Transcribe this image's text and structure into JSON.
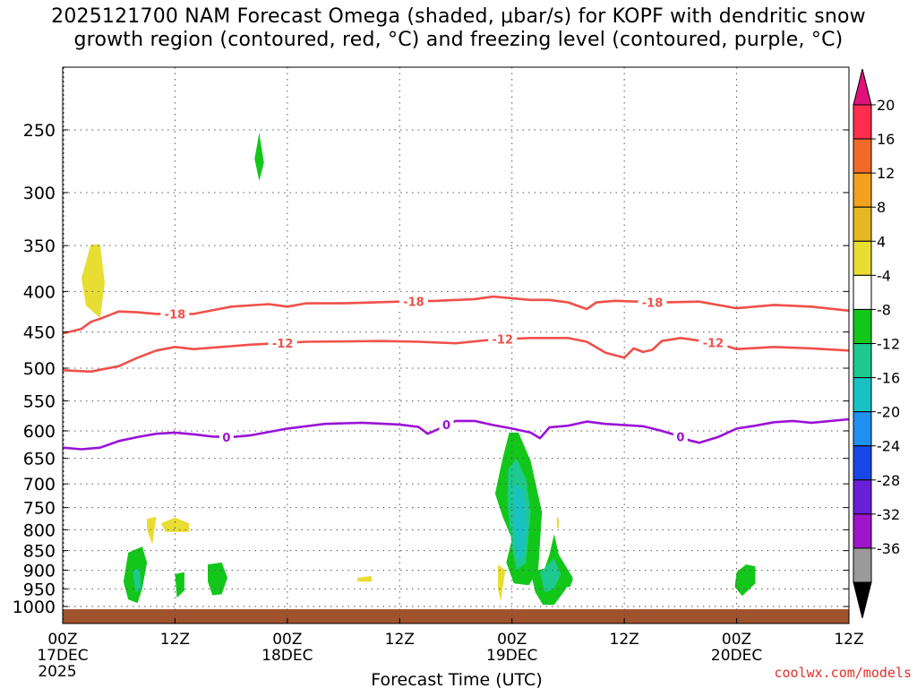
{
  "chart_data": {
    "type": "heatmap",
    "title_line1": "2025121700 NAM Forecast Omega (shaded, μbar/s) for KOPF with dendritic snow",
    "title_line2": "growth region (contoured, red, °C) and freezing level (contoured, purple, °C)",
    "xlabel": "Forecast Time (UTC)",
    "xlim_hours": [
      0,
      84
    ],
    "x_ticks": [
      {
        "hour": 0,
        "label": "00Z",
        "sub": "17DEC",
        "sub2": "2025"
      },
      {
        "hour": 12,
        "label": "12Z"
      },
      {
        "hour": 24,
        "label": "00Z",
        "sub": "18DEC"
      },
      {
        "hour": 36,
        "label": "12Z"
      },
      {
        "hour": 48,
        "label": "00Z",
        "sub": "19DEC"
      },
      {
        "hour": 60,
        "label": "12Z"
      },
      {
        "hour": 72,
        "label": "00Z",
        "sub": "20DEC"
      },
      {
        "hour": 84,
        "label": "12Z"
      }
    ],
    "y_pressure_ticks": [
      250,
      300,
      350,
      400,
      450,
      500,
      550,
      600,
      650,
      700,
      750,
      800,
      850,
      900,
      950,
      1000
    ],
    "ylim_hpa": [
      200,
      1030
    ],
    "colorbar": {
      "units": "μbar/s",
      "labels": [
        "20",
        "16",
        "12",
        "8",
        "4",
        "-4",
        "-8",
        "-12",
        "-16",
        "-20",
        "-24",
        "-28",
        "-32",
        "-36"
      ],
      "colors": [
        "#ff2e4f",
        "#f26a2a",
        "#f2a21f",
        "#e3b823",
        "#e8dd32",
        "#ffffff",
        "#12c71a",
        "#1ec98f",
        "#18c2c2",
        "#1f8ff0",
        "#1a47e8",
        "#6a1fd9",
        "#9e15c9",
        "#9a9a9a"
      ],
      "top_arrow_color": "#e0127a",
      "bottom_arrow_color": "#000000"
    },
    "contours": [
      {
        "name": "dgz-18",
        "label": "-18",
        "color": "#f0504a",
        "points": [
          [
            0,
            452
          ],
          [
            2,
            446
          ],
          [
            3,
            437
          ],
          [
            4,
            433
          ],
          [
            6,
            424
          ],
          [
            8,
            425
          ],
          [
            10,
            427
          ],
          [
            14,
            427
          ],
          [
            18,
            418
          ],
          [
            22,
            415
          ],
          [
            24,
            418
          ],
          [
            26,
            414
          ],
          [
            30,
            414
          ],
          [
            36,
            412
          ],
          [
            40,
            411
          ],
          [
            44,
            409
          ],
          [
            46,
            406
          ],
          [
            50,
            410
          ],
          [
            52,
            410
          ],
          [
            54,
            413
          ],
          [
            56,
            421
          ],
          [
            57,
            413
          ],
          [
            59,
            411
          ],
          [
            64,
            413
          ],
          [
            68,
            412
          ],
          [
            72,
            420
          ],
          [
            76,
            416
          ],
          [
            80,
            418
          ],
          [
            84,
            423
          ]
        ],
        "label_hours": [
          12,
          37.5,
          63
        ]
      },
      {
        "name": "dgz-12",
        "label": "-12",
        "color": "#f0504a",
        "points": [
          [
            0,
            503
          ],
          [
            3,
            505
          ],
          [
            6,
            497
          ],
          [
            8,
            485
          ],
          [
            10,
            475
          ],
          [
            12,
            470
          ],
          [
            14,
            473
          ],
          [
            20,
            467
          ],
          [
            26,
            463
          ],
          [
            34,
            462
          ],
          [
            38,
            463
          ],
          [
            42,
            465
          ],
          [
            46,
            460
          ],
          [
            50,
            458
          ],
          [
            54,
            458
          ],
          [
            56,
            463
          ],
          [
            58,
            478
          ],
          [
            60,
            485
          ],
          [
            61,
            472
          ],
          [
            62,
            477
          ],
          [
            63,
            474
          ],
          [
            64,
            462
          ],
          [
            66,
            458
          ],
          [
            70,
            465
          ],
          [
            72,
            473
          ],
          [
            76,
            470
          ],
          [
            80,
            472
          ],
          [
            84,
            475
          ]
        ],
        "label_hours": [
          23.5,
          47,
          69.5
        ]
      },
      {
        "name": "freezing-0",
        "label": "0",
        "color": "#9a12d6",
        "points": [
          [
            0,
            630
          ],
          [
            2,
            633
          ],
          [
            4,
            630
          ],
          [
            6,
            618
          ],
          [
            8,
            611
          ],
          [
            10,
            605
          ],
          [
            12,
            603
          ],
          [
            14,
            606
          ],
          [
            16,
            610
          ],
          [
            18,
            611
          ],
          [
            20,
            608
          ],
          [
            24,
            596
          ],
          [
            28,
            588
          ],
          [
            32,
            586
          ],
          [
            36,
            589
          ],
          [
            38,
            593
          ],
          [
            39,
            605
          ],
          [
            40,
            598
          ],
          [
            41,
            589
          ],
          [
            42,
            583
          ],
          [
            44,
            583
          ],
          [
            46,
            590
          ],
          [
            48,
            596
          ],
          [
            50,
            603
          ],
          [
            51,
            613
          ],
          [
            52,
            594
          ],
          [
            54,
            591
          ],
          [
            56,
            584
          ],
          [
            58,
            588
          ],
          [
            62,
            592
          ],
          [
            64,
            600
          ],
          [
            66,
            610
          ],
          [
            67,
            617
          ],
          [
            68,
            621
          ],
          [
            70,
            611
          ],
          [
            72,
            596
          ],
          [
            74,
            591
          ],
          [
            76,
            585
          ],
          [
            78,
            583
          ],
          [
            80,
            586
          ],
          [
            84,
            580
          ]
        ],
        "label_hours": [
          17.5,
          41,
          66
        ]
      }
    ],
    "omega_regions": [
      {
        "name": "pos-350-400",
        "color": "#e8dd32",
        "points": [
          [
            2,
            385
          ],
          [
            3,
            349
          ],
          [
            4,
            349
          ],
          [
            4.5,
            390
          ],
          [
            4,
            432
          ],
          [
            2.5,
            417
          ]
        ]
      },
      {
        "name": "neg-270",
        "color": "#12c71a",
        "points": [
          [
            21,
            252
          ],
          [
            21.5,
            275
          ],
          [
            21,
            290
          ],
          [
            20.5,
            272
          ]
        ]
      },
      {
        "name": "neg-900a",
        "color": "#12c71a",
        "points": [
          [
            7,
            855
          ],
          [
            8.5,
            840
          ],
          [
            9,
            880
          ],
          [
            8.5,
            950
          ],
          [
            8,
            990
          ],
          [
            7,
            980
          ],
          [
            6.5,
            930
          ]
        ]
      },
      {
        "name": "neg-900a-core",
        "color": "#1ec98f",
        "points": [
          [
            7.5,
            900
          ],
          [
            8.2,
            895
          ],
          [
            8.4,
            950
          ],
          [
            7.8,
            960
          ]
        ]
      },
      {
        "name": "neg-900b",
        "color": "#12c71a",
        "points": [
          [
            12,
            910
          ],
          [
            13,
            905
          ],
          [
            13,
            955
          ],
          [
            12.2,
            975
          ]
        ]
      },
      {
        "name": "neg-900c",
        "color": "#12c71a",
        "points": [
          [
            15.5,
            885
          ],
          [
            17,
            880
          ],
          [
            17.6,
            920
          ],
          [
            17,
            965
          ],
          [
            16,
            968
          ],
          [
            15.5,
            930
          ]
        ]
      },
      {
        "name": "pos-800a",
        "color": "#e8dd32",
        "points": [
          [
            9,
            775
          ],
          [
            10,
            770
          ],
          [
            9.8,
            800
          ],
          [
            9.6,
            835
          ],
          [
            9,
            800
          ]
        ]
      },
      {
        "name": "pos-800b",
        "color": "#e8dd32",
        "points": [
          [
            10.5,
            785
          ],
          [
            12,
            772
          ],
          [
            13.5,
            785
          ],
          [
            13.5,
            805
          ],
          [
            11,
            805
          ]
        ]
      },
      {
        "name": "pos-920",
        "color": "#e8dd32",
        "points": [
          [
            31.5,
            920
          ],
          [
            33,
            915
          ],
          [
            33,
            930
          ],
          [
            31.5,
            930
          ]
        ]
      },
      {
        "name": "neg-main",
        "color": "#12c71a",
        "points": [
          [
            47,
            650
          ],
          [
            47.7,
            603
          ],
          [
            48.7,
            603
          ],
          [
            50,
            655
          ],
          [
            51.2,
            760
          ],
          [
            50.8,
            900
          ],
          [
            49.8,
            940
          ],
          [
            48.2,
            935
          ],
          [
            47.4,
            880
          ],
          [
            48,
            822
          ],
          [
            47,
            770
          ],
          [
            46.2,
            720
          ]
        ]
      },
      {
        "name": "neg-main-mid",
        "color": "#1ec98f",
        "points": [
          [
            47.6,
            670
          ],
          [
            48.5,
            650
          ],
          [
            49.5,
            690
          ],
          [
            50,
            760
          ],
          [
            49.5,
            880
          ],
          [
            48.5,
            900
          ],
          [
            48,
            840
          ],
          [
            47.5,
            740
          ]
        ]
      },
      {
        "name": "neg-main-core",
        "color": "#18c2c2",
        "points": [
          [
            48.2,
            700
          ],
          [
            49.2,
            715
          ],
          [
            49.6,
            800
          ],
          [
            49,
            880
          ],
          [
            48.5,
            860
          ],
          [
            48.2,
            780
          ]
        ]
      },
      {
        "name": "pos-940",
        "color": "#e8dd32",
        "points": [
          [
            46.5,
            885
          ],
          [
            47.3,
            900
          ],
          [
            47,
            950
          ],
          [
            46.8,
            985
          ],
          [
            46.5,
            950
          ]
        ]
      },
      {
        "name": "neg-900d",
        "color": "#12c71a",
        "points": [
          [
            50,
            905
          ],
          [
            51.5,
            895
          ],
          [
            52,
            860
          ],
          [
            52.5,
            810
          ],
          [
            53,
            860
          ],
          [
            54.5,
            920
          ],
          [
            53.5,
            960
          ],
          [
            52.5,
            995
          ],
          [
            51.3,
            995
          ],
          [
            50.5,
            960
          ]
        ]
      },
      {
        "name": "neg-900d-core",
        "color": "#1ec98f",
        "points": [
          [
            51,
            905
          ],
          [
            52.5,
            870
          ],
          [
            53.2,
            910
          ],
          [
            52.5,
            950
          ],
          [
            51.5,
            960
          ]
        ]
      },
      {
        "name": "pos-785",
        "color": "#e8dd32",
        "points": [
          [
            52.8,
            770
          ],
          [
            53,
            775
          ],
          [
            53,
            795
          ],
          [
            52.8,
            795
          ]
        ]
      },
      {
        "name": "neg-930e",
        "color": "#12c71a",
        "points": [
          [
            53.5,
            905
          ],
          [
            54,
            910
          ],
          [
            54.5,
            925
          ],
          [
            54.2,
            945
          ],
          [
            53.8,
            945
          ]
        ]
      },
      {
        "name": "neg-920f",
        "color": "#12c71a",
        "points": [
          [
            72,
            905
          ],
          [
            73,
            885
          ],
          [
            74,
            890
          ],
          [
            74,
            935
          ],
          [
            72.6,
            970
          ],
          [
            71.8,
            945
          ]
        ]
      }
    ],
    "surface_band": {
      "name": "surface",
      "color": "#a0522d",
      "from_hpa": 1008,
      "to_hpa": 1030
    }
  },
  "credit": "coolwx.com/models"
}
